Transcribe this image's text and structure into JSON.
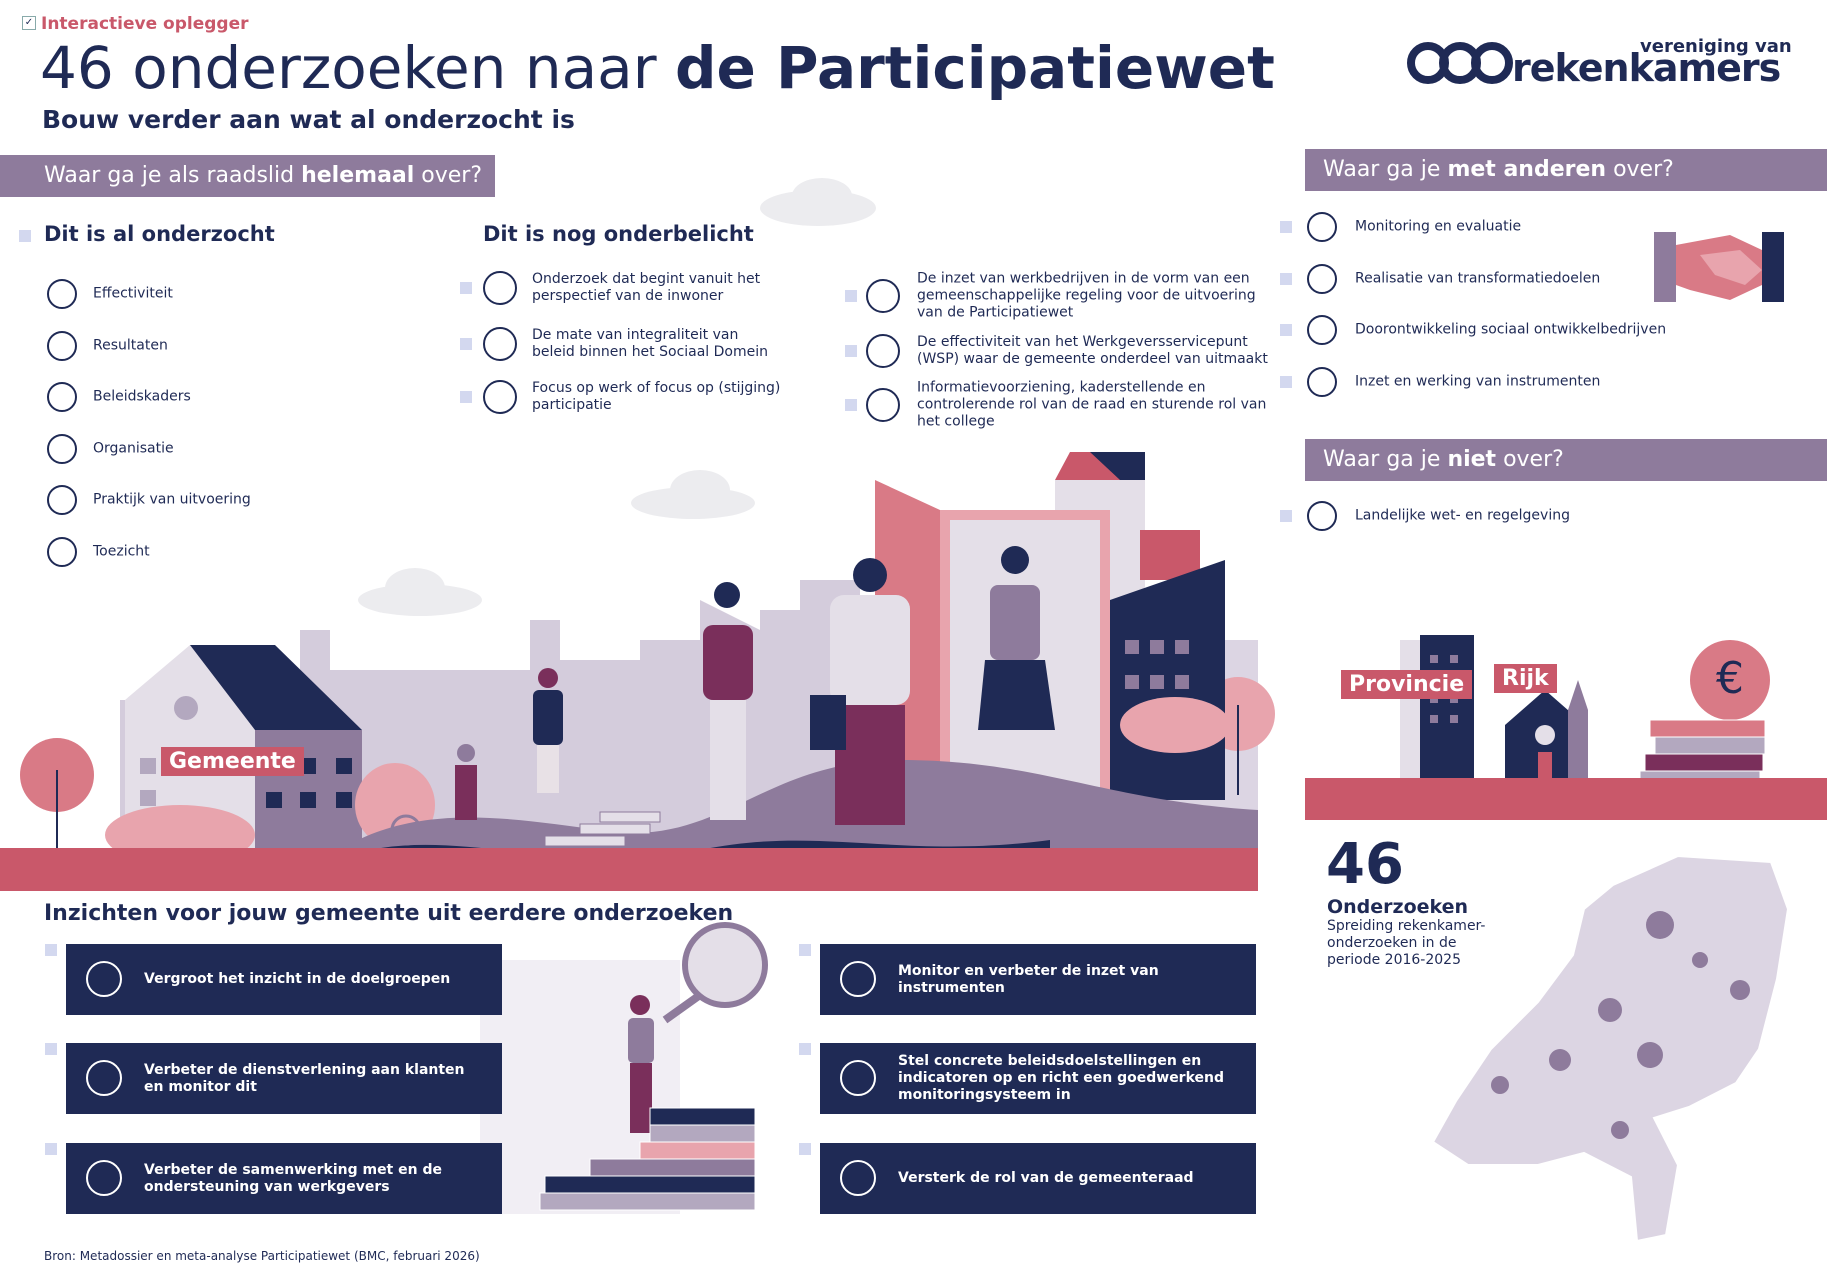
{
  "header": {
    "tag": "Interactieve oplegger",
    "title": {
      "light": "46 onderzoeken naar",
      "bold": "de Participatiewet"
    },
    "subtitle": "Bouw verder aan wat al onderzocht is"
  },
  "logo": {
    "top": "vereniging van",
    "name": "rekenkamers"
  },
  "raadslid": {
    "banner": [
      "Waar ga je als raadslid ",
      "helemaal",
      " over?"
    ],
    "onderzocht": {
      "heading": "Dit is al onderzocht",
      "items": [
        "Effectiviteit",
        "Resultaten",
        "Beleidskaders",
        "Organisatie",
        "Praktijk van uitvoering",
        "Toezicht"
      ]
    },
    "onderbelicht": {
      "heading": "Dit is nog onderbelicht",
      "items": [
        "Onderzoek dat begint vanuit het perspectief van de inwoner",
        "De mate van integraliteit van beleid binnen het Sociaal Domein",
        "Focus op werk of focus op (stijging) participatie",
        "De inzet van werkbedrijven in de vorm van een gemeenschappelijke regeling voor de uitvoering van de Participatiewet",
        "De effectiviteit van het Werkgeversservicepunt (WSP) waar de gemeente onderdeel van uitmaakt",
        "Informatievoorziening, kaderstellende en controlerende rol van de raad en sturende rol van het college"
      ]
    }
  },
  "met_anderen": {
    "banner": [
      "Waar ga je ",
      "met anderen",
      " over?"
    ],
    "items": [
      "Monitoring en evaluatie",
      "Realisatie van transformatiedoelen",
      "Doorontwikkeling sociaal ontwikkelbedrijven",
      "Inzet en werking van instrumenten"
    ]
  },
  "niet": {
    "banner": [
      "Waar ga je ",
      "niet",
      " over?"
    ],
    "items": [
      "Landelijke wet- en regelgeving"
    ]
  },
  "scene": {
    "labels": [
      "Gemeente",
      "Provincie",
      "Rijk"
    ]
  },
  "stats": {
    "number": "46",
    "label": "Onderzoeken",
    "description": "Spreiding rekenkamer-onderzoeken in de periode 2016-2025"
  },
  "inzichten": {
    "heading": "Inzichten voor jouw gemeente uit eerdere onderzoeken",
    "items": [
      "Vergroot het inzicht in de doelgroepen",
      "Verbeter de dienstverlening aan klanten en monitor dit",
      "Verbeter de samenwerking met en de ondersteuning van werkgevers",
      "Monitor en verbeter de inzet van instrumenten",
      "Stel concrete beleidsdoelstellingen en indicatoren op en richt een goedwerkend monitoringsysteem in",
      "Versterk de rol van de gemeenteraad"
    ]
  },
  "source": "Bron: Metadossier en meta-analyse Participatiewet (BMC, februari 2026)"
}
